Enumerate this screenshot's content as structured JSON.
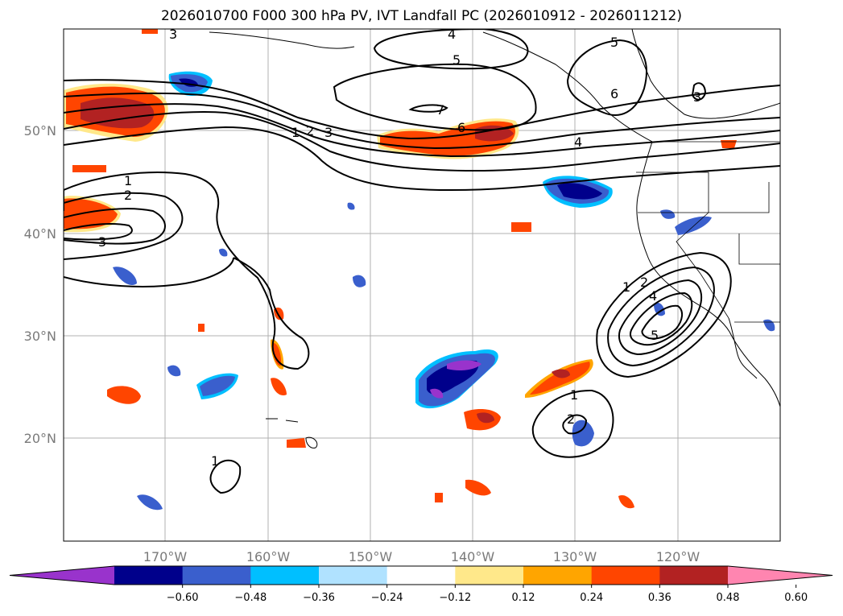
{
  "title": "2026010700 F000 300 hPa PV, IVT Landfall PC (2026010912 - 2026011212)",
  "lat_labels": [
    "50°N",
    "40°N",
    "30°N",
    "20°N"
  ],
  "lon_labels": [
    "170°W",
    "160°W",
    "150°W",
    "140°W",
    "130°W",
    "120°W"
  ],
  "colorbar": {
    "colors": [
      "#9933cc",
      "#00008b",
      "#3a5fcd",
      "#00bfff",
      "#b0e2ff",
      "#ffffff",
      "#ffe88a",
      "#ffa500",
      "#ff4500",
      "#b22222",
      "#ff85b0"
    ],
    "tick_labels": [
      "−0.60",
      "−0.48",
      "−0.36",
      "−0.24",
      "−0.12",
      "0.12",
      "0.24",
      "0.36",
      "0.48",
      "0.60"
    ]
  },
  "contour_labels": {
    "nw_1": "1",
    "nw_2": "2",
    "nw_3": "3",
    "top_3": "3",
    "n_4": "4",
    "n_5": "5",
    "n_5b": "5",
    "n_6": "6",
    "n_7": "7",
    "ne_6": "6",
    "ne_3": "3",
    "e_4": "4",
    "w_1": "1",
    "w_2": "2",
    "w_3": "3",
    "coast_1": "1",
    "coast_2": "2",
    "coast_4": "4",
    "coast_5": "5",
    "s_1": "1",
    "s_2": "2",
    "sw_1": "1"
  }
}
